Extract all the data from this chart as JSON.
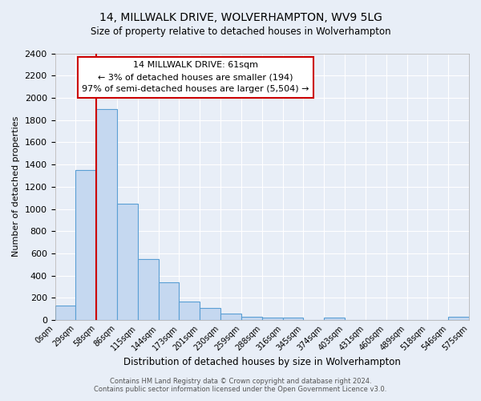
{
  "title": "14, MILLWALK DRIVE, WOLVERHAMPTON, WV9 5LG",
  "subtitle": "Size of property relative to detached houses in Wolverhampton",
  "xlabel": "Distribution of detached houses by size in Wolverhampton",
  "ylabel": "Number of detached properties",
  "bin_edges_labels": [
    "0sqm",
    "29sqm",
    "58sqm",
    "86sqm",
    "115sqm",
    "144sqm",
    "173sqm",
    "201sqm",
    "230sqm",
    "259sqm",
    "288sqm",
    "316sqm",
    "345sqm",
    "374sqm",
    "403sqm",
    "431sqm",
    "460sqm",
    "489sqm",
    "518sqm",
    "546sqm",
    "575sqm"
  ],
  "bar_heights": [
    130,
    1350,
    1900,
    1050,
    550,
    340,
    165,
    110,
    60,
    30,
    25,
    20,
    0,
    20,
    0,
    0,
    0,
    0,
    0,
    30
  ],
  "bar_color": "#c5d8f0",
  "bar_edge_color": "#5a9fd4",
  "vline_pos": 2.0,
  "vline_color": "#cc0000",
  "ylim": [
    0,
    2400
  ],
  "yticks": [
    0,
    200,
    400,
    600,
    800,
    1000,
    1200,
    1400,
    1600,
    1800,
    2000,
    2200,
    2400
  ],
  "annotation_title": "14 MILLWALK DRIVE: 61sqm",
  "annotation_line1": "← 3% of detached houses are smaller (194)",
  "annotation_line2": "97% of semi-detached houses are larger (5,504) →",
  "annotation_box_color": "#ffffff",
  "annotation_box_edge": "#cc0000",
  "footer1": "Contains HM Land Registry data © Crown copyright and database right 2024.",
  "footer2": "Contains public sector information licensed under the Open Government Licence v3.0.",
  "background_color": "#e8eef7",
  "plot_bg_color": "#e8eef7",
  "grid_color": "#ffffff"
}
